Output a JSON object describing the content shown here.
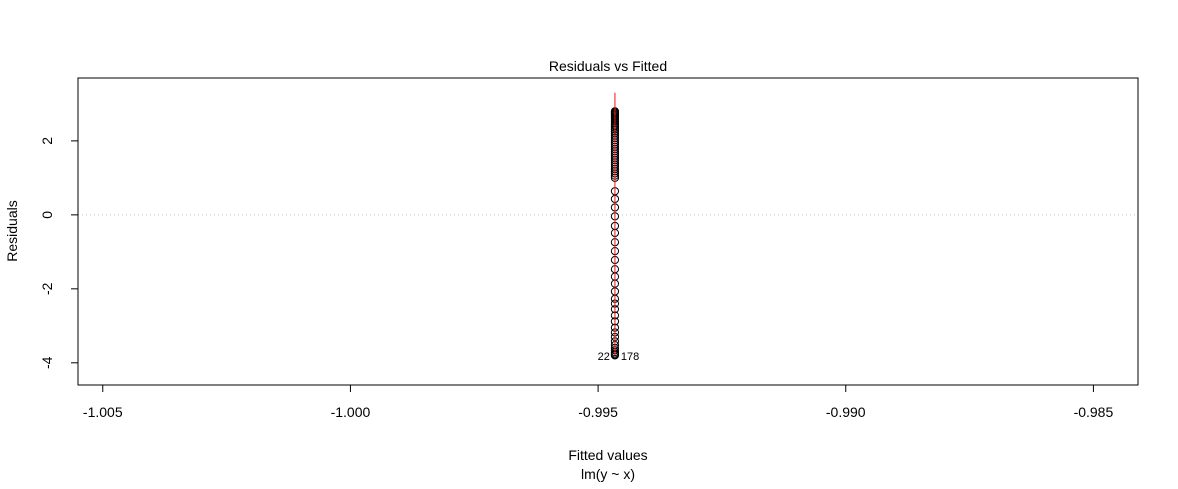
{
  "chart_data": {
    "type": "scatter",
    "title": "Residuals vs Fitted",
    "xlabel": "Fitted values",
    "subtitle": "lm(y ~ x)",
    "ylabel": "Residuals",
    "xlim": [
      -1.0055,
      -0.9841
    ],
    "ylim": [
      -4.6,
      3.7
    ],
    "x_ticks": [
      -1.005,
      -1.0,
      -0.995,
      -0.99,
      -0.985
    ],
    "x_tick_labels": [
      "-1.005",
      "-1.000",
      "-0.995",
      "-0.990",
      "-0.985"
    ],
    "y_ticks": [
      -4,
      -2,
      0,
      2
    ],
    "y_tick_labels": [
      "-4",
      "-2",
      "0",
      "2"
    ],
    "reference_line": {
      "y": 0,
      "style": "dotted",
      "color": "#c8c8c8"
    },
    "smooth_line": {
      "x": -0.99466,
      "y_from": -3.8,
      "y_to": 3.3,
      "color": "#e0191f"
    },
    "fitted_value": -0.99466,
    "residuals": [
      2.8,
      2.78,
      2.76,
      2.73,
      2.7,
      2.67,
      2.64,
      2.6,
      2.56,
      2.52,
      2.48,
      2.44,
      2.4,
      2.35,
      2.3,
      2.25,
      2.2,
      2.14,
      2.08,
      2.02,
      1.96,
      1.9,
      1.84,
      1.78,
      1.72,
      1.66,
      1.6,
      1.54,
      1.48,
      1.42,
      1.36,
      1.3,
      1.24,
      1.18,
      1.12,
      1.06,
      1.0,
      0.64,
      0.43,
      0.2,
      -0.04,
      -0.3,
      -0.49,
      -0.74,
      -0.98,
      -1.22,
      -1.47,
      -1.67,
      -1.86,
      -2.07,
      -2.27,
      -2.4,
      -2.55,
      -2.72,
      -2.88,
      -3.05,
      -3.18,
      -3.3,
      -3.42,
      -3.52,
      -3.6,
      -3.66,
      -3.71,
      -3.75,
      -3.78,
      -3.8
    ],
    "point_labels": [
      {
        "text": "22",
        "y": -3.82,
        "side": "left"
      },
      {
        "text": "178",
        "y": -3.82,
        "side": "right"
      }
    ],
    "point_style": {
      "shape": "open-circle",
      "color": "#000000"
    }
  }
}
